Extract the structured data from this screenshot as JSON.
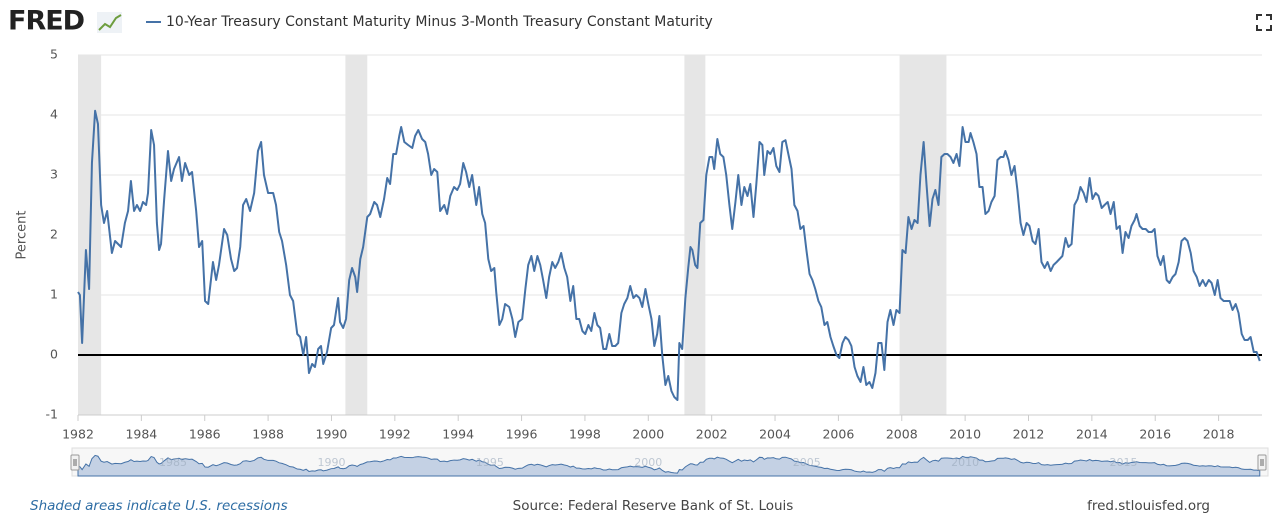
{
  "header": {
    "logo": "FRED"
  },
  "chart_data": {
    "type": "line",
    "y_label": "Percent",
    "x": [
      1982.0,
      1982.06,
      1982.13,
      1982.25,
      1982.35,
      1982.44,
      1982.54,
      1982.63,
      1982.73,
      1982.82,
      1982.92,
      1983.07,
      1983.17,
      1983.36,
      1983.48,
      1983.58,
      1983.67,
      1983.77,
      1983.86,
      1983.96,
      1984.05,
      1984.15,
      1984.21,
      1984.31,
      1984.4,
      1984.49,
      1984.56,
      1984.62,
      1984.72,
      1984.84,
      1984.94,
      1985.03,
      1985.19,
      1985.28,
      1985.38,
      1985.51,
      1985.6,
      1985.73,
      1985.82,
      1985.92,
      1986.01,
      1986.11,
      1986.26,
      1986.36,
      1986.45,
      1986.61,
      1986.71,
      1986.83,
      1986.93,
      1987.02,
      1987.12,
      1987.21,
      1987.31,
      1987.43,
      1987.56,
      1987.68,
      1987.78,
      1987.87,
      1988.0,
      1988.16,
      1988.25,
      1988.35,
      1988.44,
      1988.57,
      1988.69,
      1988.79,
      1988.92,
      1989.01,
      1989.11,
      1989.2,
      1989.29,
      1989.39,
      1989.48,
      1989.58,
      1989.67,
      1989.74,
      1989.86,
      1989.99,
      1990.08,
      1990.21,
      1990.27,
      1990.37,
      1990.46,
      1990.56,
      1990.65,
      1990.75,
      1990.81,
      1990.91,
      1991.0,
      1991.13,
      1991.22,
      1991.35,
      1991.44,
      1991.54,
      1991.66,
      1991.76,
      1991.85,
      1991.95,
      1992.04,
      1992.14,
      1992.2,
      1992.3,
      1992.42,
      1992.55,
      1992.64,
      1992.74,
      1992.86,
      1992.96,
      1993.05,
      1993.15,
      1993.24,
      1993.34,
      1993.43,
      1993.56,
      1993.65,
      1993.75,
      1993.87,
      1993.97,
      1994.06,
      1994.16,
      1994.25,
      1994.35,
      1994.44,
      1994.57,
      1994.66,
      1994.76,
      1994.85,
      1994.95,
      1995.04,
      1995.14,
      1995.2,
      1995.3,
      1995.39,
      1995.48,
      1995.61,
      1995.71,
      1995.8,
      1995.9,
      1996.02,
      1996.12,
      1996.21,
      1996.31,
      1996.4,
      1996.5,
      1996.59,
      1996.68,
      1996.78,
      1996.87,
      1996.97,
      1997.06,
      1997.16,
      1997.25,
      1997.35,
      1997.44,
      1997.54,
      1997.63,
      1997.73,
      1997.82,
      1997.92,
      1998.01,
      1998.11,
      1998.2,
      1998.3,
      1998.39,
      1998.48,
      1998.58,
      1998.67,
      1998.77,
      1998.86,
      1998.96,
      1999.05,
      1999.15,
      1999.24,
      1999.34,
      1999.43,
      1999.53,
      1999.62,
      1999.72,
      1999.81,
      1999.91,
      2000.0,
      2000.1,
      2000.19,
      2000.28,
      2000.35,
      2000.44,
      2000.54,
      2000.63,
      2000.73,
      2000.82,
      2000.92,
      2000.98,
      2001.07,
      2001.17,
      2001.26,
      2001.33,
      2001.39,
      2001.48,
      2001.55,
      2001.64,
      2001.74,
      2001.83,
      2001.93,
      2002.02,
      2002.08,
      2002.18,
      2002.27,
      2002.37,
      2002.46,
      2002.56,
      2002.65,
      2002.75,
      2002.84,
      2002.94,
      2003.03,
      2003.13,
      2003.22,
      2003.32,
      2003.41,
      2003.51,
      2003.6,
      2003.66,
      2003.76,
      2003.85,
      2003.95,
      2004.04,
      2004.14,
      2004.23,
      2004.33,
      2004.42,
      2004.52,
      2004.61,
      2004.71,
      2004.8,
      2004.9,
      2004.99,
      2005.09,
      2005.18,
      2005.27,
      2005.37,
      2005.46,
      2005.56,
      2005.65,
      2005.75,
      2005.84,
      2005.94,
      2006.03,
      2006.13,
      2006.22,
      2006.32,
      2006.41,
      2006.51,
      2006.6,
      2006.7,
      2006.79,
      2006.88,
      2006.98,
      2007.07,
      2007.17,
      2007.26,
      2007.36,
      2007.45,
      2007.55,
      2007.64,
      2007.74,
      2007.83,
      2007.93,
      2008.02,
      2008.12,
      2008.21,
      2008.31,
      2008.4,
      2008.5,
      2008.59,
      2008.69,
      2008.78,
      2008.88,
      2008.97,
      2009.06,
      2009.16,
      2009.25,
      2009.35,
      2009.44,
      2009.54,
      2009.63,
      2009.73,
      2009.82,
      2009.92,
      2010.01,
      2010.11,
      2010.17,
      2010.26,
      2010.36,
      2010.45,
      2010.55,
      2010.64,
      2010.74,
      2010.83,
      2010.93,
      2011.02,
      2011.12,
      2011.21,
      2011.27,
      2011.37,
      2011.46,
      2011.56,
      2011.65,
      2011.75,
      2011.84,
      2011.94,
      2012.03,
      2012.13,
      2012.22,
      2012.32,
      2012.41,
      2012.51,
      2012.6,
      2012.7,
      2012.79,
      2012.89,
      2012.98,
      2013.07,
      2013.17,
      2013.26,
      2013.36,
      2013.45,
      2013.55,
      2013.64,
      2013.74,
      2013.83,
      2013.93,
      2014.02,
      2014.12,
      2014.21,
      2014.31,
      2014.4,
      2014.5,
      2014.59,
      2014.69,
      2014.78,
      2014.88,
      2014.97,
      2015.06,
      2015.16,
      2015.25,
      2015.35,
      2015.41,
      2015.51,
      2015.6,
      2015.7,
      2015.79,
      2015.89,
      2015.98,
      2016.07,
      2016.17,
      2016.26,
      2016.36,
      2016.45,
      2016.55,
      2016.64,
      2016.74,
      2016.83,
      2016.93,
      2017.02,
      2017.12,
      2017.21,
      2017.31,
      2017.4,
      2017.5,
      2017.59,
      2017.69,
      2017.78,
      2017.88,
      2017.97,
      2018.06,
      2018.16,
      2018.25,
      2018.35,
      2018.44,
      2018.54,
      2018.63,
      2018.73,
      2018.82,
      2018.92,
      2019.01,
      2019.11,
      2019.2,
      2019.3
    ],
    "series": [
      {
        "name": "10-Year Treasury Constant Maturity Minus 3-Month Treasury Constant Maturity",
        "color": "#4572a7",
        "values": [
          1.05,
          1.0,
          0.2,
          1.75,
          1.1,
          3.2,
          4.07,
          3.85,
          2.5,
          2.2,
          2.4,
          1.7,
          1.9,
          1.8,
          2.2,
          2.4,
          2.9,
          2.4,
          2.5,
          2.4,
          2.55,
          2.5,
          2.7,
          3.75,
          3.5,
          2.2,
          1.75,
          1.85,
          2.6,
          3.4,
          2.9,
          3.1,
          3.3,
          2.9,
          3.2,
          3.0,
          3.05,
          2.4,
          1.8,
          1.9,
          0.9,
          0.85,
          1.55,
          1.25,
          1.5,
          2.1,
          2.0,
          1.6,
          1.4,
          1.45,
          1.8,
          2.5,
          2.6,
          2.4,
          2.7,
          3.4,
          3.55,
          3.0,
          2.7,
          2.7,
          2.5,
          2.05,
          1.9,
          1.5,
          1.0,
          0.9,
          0.35,
          0.3,
          0.0,
          0.3,
          -0.3,
          -0.15,
          -0.2,
          0.1,
          0.15,
          -0.15,
          0.05,
          0.45,
          0.5,
          0.95,
          0.55,
          0.45,
          0.6,
          1.25,
          1.45,
          1.3,
          1.05,
          1.6,
          1.8,
          2.3,
          2.35,
          2.55,
          2.5,
          2.3,
          2.6,
          2.95,
          2.85,
          3.35,
          3.35,
          3.65,
          3.8,
          3.55,
          3.5,
          3.45,
          3.65,
          3.75,
          3.6,
          3.55,
          3.35,
          3.0,
          3.1,
          3.05,
          2.4,
          2.5,
          2.35,
          2.65,
          2.8,
          2.75,
          2.85,
          3.2,
          3.05,
          2.8,
          3.0,
          2.5,
          2.8,
          2.35,
          2.2,
          1.6,
          1.4,
          1.45,
          1.05,
          0.5,
          0.6,
          0.85,
          0.8,
          0.6,
          0.3,
          0.55,
          0.6,
          1.1,
          1.5,
          1.65,
          1.4,
          1.65,
          1.5,
          1.25,
          0.95,
          1.3,
          1.55,
          1.45,
          1.55,
          1.7,
          1.45,
          1.3,
          0.9,
          1.15,
          0.6,
          0.6,
          0.4,
          0.35,
          0.5,
          0.4,
          0.7,
          0.5,
          0.45,
          0.1,
          0.1,
          0.35,
          0.15,
          0.15,
          0.2,
          0.7,
          0.85,
          0.95,
          1.15,
          0.95,
          1.0,
          0.95,
          0.8,
          1.1,
          0.85,
          0.6,
          0.15,
          0.35,
          0.65,
          0.0,
          -0.5,
          -0.35,
          -0.6,
          -0.7,
          -0.75,
          0.2,
          0.1,
          0.95,
          1.45,
          1.8,
          1.75,
          1.5,
          1.45,
          2.2,
          2.25,
          3.0,
          3.3,
          3.3,
          3.1,
          3.6,
          3.35,
          3.3,
          3.0,
          2.5,
          2.1,
          2.55,
          3.0,
          2.5,
          2.8,
          2.65,
          2.85,
          2.3,
          2.85,
          3.55,
          3.5,
          3.0,
          3.4,
          3.35,
          3.45,
          3.15,
          3.05,
          3.55,
          3.58,
          3.35,
          3.1,
          2.5,
          2.4,
          2.1,
          2.15,
          1.75,
          1.35,
          1.25,
          1.1,
          0.9,
          0.8,
          0.5,
          0.55,
          0.3,
          0.15,
          0.0,
          -0.05,
          0.2,
          0.3,
          0.25,
          0.15,
          -0.2,
          -0.35,
          -0.45,
          -0.2,
          -0.5,
          -0.45,
          -0.55,
          -0.3,
          0.2,
          0.2,
          -0.25,
          0.55,
          0.75,
          0.5,
          0.75,
          0.7,
          1.75,
          1.7,
          2.3,
          2.1,
          2.25,
          2.2,
          3.0,
          3.55,
          2.85,
          2.15,
          2.6,
          2.75,
          2.5,
          3.3,
          3.35,
          3.35,
          3.3,
          3.2,
          3.35,
          3.15,
          3.8,
          3.55,
          3.55,
          3.7,
          3.55,
          3.35,
          2.8,
          2.8,
          2.35,
          2.4,
          2.55,
          2.65,
          3.25,
          3.3,
          3.3,
          3.4,
          3.25,
          3.0,
          3.15,
          2.75,
          2.2,
          2.0,
          2.2,
          2.15,
          1.9,
          1.85,
          2.1,
          1.55,
          1.45,
          1.55,
          1.4,
          1.5,
          1.55,
          1.6,
          1.65,
          1.95,
          1.8,
          1.85,
          2.5,
          2.6,
          2.8,
          2.7,
          2.55,
          2.95,
          2.6,
          2.7,
          2.65,
          2.45,
          2.5,
          2.55,
          2.35,
          2.55,
          2.1,
          2.15,
          1.7,
          2.05,
          1.95,
          2.15,
          2.25,
          2.35,
          2.15,
          2.1,
          2.1,
          2.05,
          2.05,
          2.1,
          1.65,
          1.5,
          1.65,
          1.25,
          1.2,
          1.3,
          1.35,
          1.55,
          1.9,
          1.95,
          1.9,
          1.7,
          1.4,
          1.3,
          1.15,
          1.25,
          1.15,
          1.25,
          1.2,
          1.0,
          1.25,
          0.95,
          0.9,
          0.9,
          0.9,
          0.75,
          0.85,
          0.7,
          0.35,
          0.25,
          0.25,
          0.3,
          0.05,
          0.05,
          -0.1
        ]
      }
    ],
    "xlim": [
      1982,
      2019.37
    ],
    "xticks": [
      1982,
      1984,
      1986,
      1988,
      1990,
      1992,
      1994,
      1996,
      1998,
      2000,
      2002,
      2004,
      2006,
      2008,
      2010,
      2012,
      2014,
      2016,
      2018
    ],
    "ylim": [
      -1,
      5
    ],
    "yticks": [
      -1,
      0,
      1,
      2,
      3,
      4,
      5
    ],
    "grid": true,
    "reference_line": 0,
    "recessions": [
      [
        1982.0,
        1982.73
      ],
      [
        1990.44,
        1991.13
      ],
      [
        2001.14,
        2001.8
      ],
      [
        2007.93,
        2009.41
      ]
    ],
    "recession_color": "#e6e6e6"
  },
  "navigator": {
    "ticks": [
      1985,
      1990,
      1995,
      2000,
      2005,
      2010,
      2015
    ]
  },
  "footer": {
    "note": "Shaded areas indicate U.S. recessions",
    "source": "Source: Federal Reserve Bank of St. Louis",
    "site": "fred.stlouisfed.org"
  }
}
